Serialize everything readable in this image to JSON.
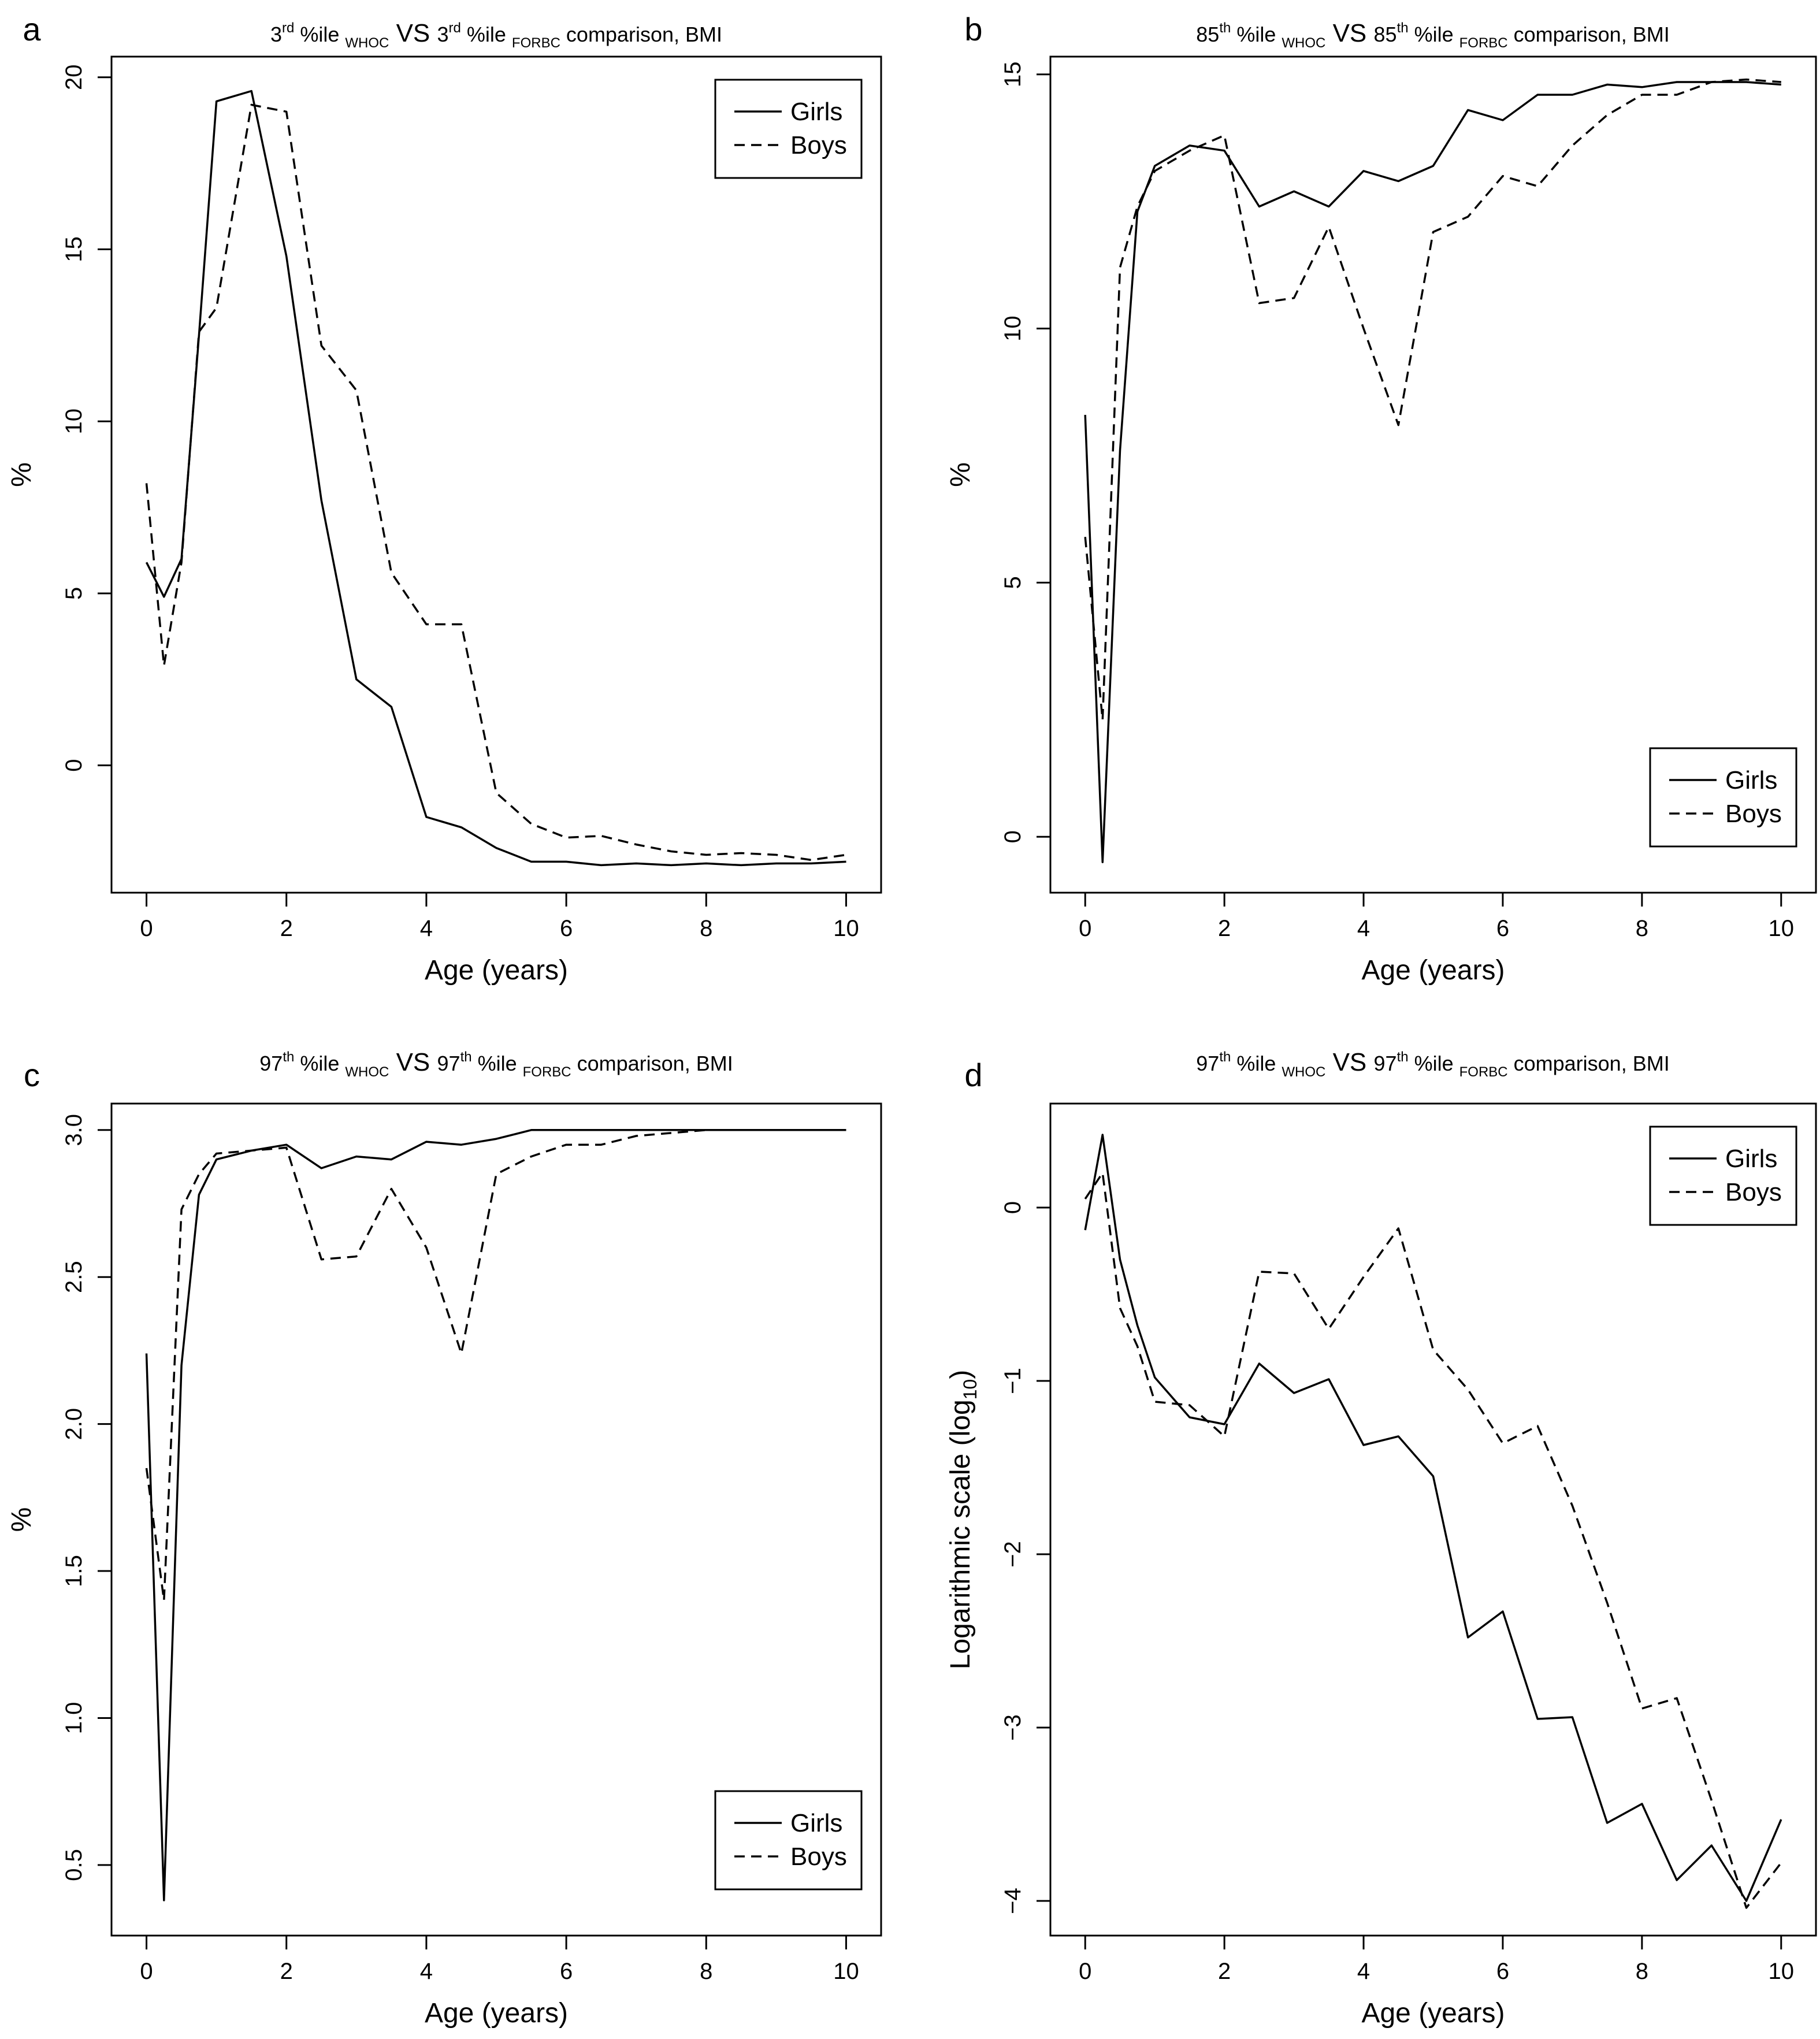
{
  "charts": [
    {
      "type": "line",
      "panel": "a",
      "title": {
        "pre": "3",
        "pre_sup": "rd",
        "mid1": " %ile ",
        "sub1": "WHOC",
        "vs": " VS ",
        "mid2": "3",
        "mid2_sup": "rd",
        "mid3": " %ile ",
        "sub2": "FORBC",
        "post": " comparison, BMI"
      },
      "xlabel": "Age (years)",
      "ylabel": "%",
      "xlim": [
        -0.5,
        10.5
      ],
      "ylim": [
        -3.7,
        20.6
      ],
      "xticks": [
        0,
        2,
        4,
        6,
        8,
        10
      ],
      "xtick_labels": [
        "0",
        "2",
        "4",
        "6",
        "8",
        "10"
      ],
      "yticks": [
        0,
        5,
        10,
        15,
        20
      ],
      "ytick_labels": [
        "0",
        "5",
        "10",
        "15",
        "20"
      ],
      "legend_position": "top-right",
      "x": [
        0,
        0.25,
        0.5,
        0.75,
        1,
        1.5,
        2,
        2.5,
        3,
        3.5,
        4,
        4.5,
        5,
        5.5,
        6,
        6.5,
        7,
        7.5,
        8,
        8.5,
        9,
        9.5,
        10
      ],
      "series": [
        {
          "name": "Girls",
          "style": "solid",
          "values": [
            5.9,
            4.9,
            6.0,
            12.5,
            19.3,
            19.6,
            14.8,
            7.7,
            2.5,
            1.7,
            -1.5,
            -1.8,
            -2.4,
            -2.8,
            -2.8,
            -2.9,
            -2.85,
            -2.9,
            -2.85,
            -2.9,
            -2.85,
            -2.85,
            -2.8
          ]
        },
        {
          "name": "Boys",
          "style": "dashed",
          "values": [
            8.2,
            2.9,
            5.9,
            12.6,
            13.3,
            19.2,
            19.0,
            12.2,
            10.9,
            5.6,
            4.1,
            4.1,
            -0.8,
            -1.7,
            -2.1,
            -2.05,
            -2.3,
            -2.5,
            -2.6,
            -2.55,
            -2.6,
            -2.75,
            -2.6
          ]
        }
      ]
    },
    {
      "type": "line",
      "panel": "b",
      "title": {
        "pre": "85",
        "pre_sup": "th",
        "mid1": " %ile ",
        "sub1": "WHOC",
        "vs": " VS ",
        "mid2": "85",
        "mid2_sup": "th",
        "mid3": " %ile ",
        "sub2": "FORBC",
        "post": " comparison, BMI"
      },
      "xlabel": "Age (years)",
      "ylabel": "%",
      "xlim": [
        -0.5,
        10.5
      ],
      "ylim": [
        -1.1,
        15.35
      ],
      "xticks": [
        0,
        2,
        4,
        6,
        8,
        10
      ],
      "xtick_labels": [
        "0",
        "2",
        "4",
        "6",
        "8",
        "10"
      ],
      "yticks": [
        0,
        5,
        10,
        15
      ],
      "ytick_labels": [
        "0",
        "5",
        "10",
        "15"
      ],
      "legend_position": "bottom-right",
      "x": [
        0,
        0.25,
        0.5,
        0.75,
        1,
        1.5,
        2,
        2.5,
        3,
        3.5,
        4,
        4.5,
        5,
        5.5,
        6,
        6.5,
        7,
        7.5,
        8,
        8.5,
        9,
        9.5,
        10
      ],
      "series": [
        {
          "name": "Girls",
          "style": "solid",
          "values": [
            8.3,
            -0.5,
            7.6,
            12.3,
            13.2,
            13.6,
            13.5,
            12.4,
            12.7,
            12.4,
            13.1,
            12.9,
            13.2,
            14.3,
            14.1,
            14.6,
            14.6,
            14.8,
            14.75,
            14.85,
            14.85,
            14.85,
            14.8
          ]
        },
        {
          "name": "Boys",
          "style": "dashed",
          "values": [
            5.9,
            2.3,
            11.2,
            12.4,
            13.1,
            13.5,
            13.8,
            10.5,
            10.6,
            12.0,
            10.0,
            8.1,
            11.9,
            12.2,
            13.0,
            12.8,
            13.6,
            14.2,
            14.6,
            14.6,
            14.85,
            14.9,
            14.85
          ]
        }
      ]
    },
    {
      "type": "line",
      "panel": "c",
      "title": {
        "pre": "97",
        "pre_sup": "th",
        "mid1": " %ile ",
        "sub1": "WHOC",
        "vs": " VS ",
        "mid2": "97",
        "mid2_sup": "th",
        "mid3": " %ile ",
        "sub2": "FORBC",
        "post": " comparison, BMI"
      },
      "xlabel": "Age (years)",
      "ylabel": "%",
      "xlim": [
        -0.5,
        10.5
      ],
      "ylim": [
        0.26,
        3.09
      ],
      "xticks": [
        0,
        2,
        4,
        6,
        8,
        10
      ],
      "xtick_labels": [
        "0",
        "2",
        "4",
        "6",
        "8",
        "10"
      ],
      "yticks": [
        0.5,
        1.0,
        1.5,
        2.0,
        2.5,
        3.0
      ],
      "ytick_labels": [
        "0.5",
        "1.0",
        "1.5",
        "2.0",
        "2.5",
        "3.0"
      ],
      "legend_position": "bottom-right",
      "x": [
        0,
        0.25,
        0.5,
        0.75,
        1,
        1.5,
        2,
        2.5,
        3,
        3.5,
        4,
        4.5,
        5,
        5.5,
        6,
        6.5,
        7,
        7.5,
        8,
        8.5,
        9,
        9.5,
        10
      ],
      "series": [
        {
          "name": "Girls",
          "style": "solid",
          "values": [
            2.24,
            0.38,
            2.2,
            2.78,
            2.9,
            2.93,
            2.95,
            2.87,
            2.91,
            2.9,
            2.96,
            2.95,
            2.97,
            3.0,
            3.0,
            3.0,
            3.0,
            3.0,
            3.0,
            3.0,
            3.0,
            3.0,
            3.0
          ]
        },
        {
          "name": "Boys",
          "style": "dashed",
          "values": [
            1.85,
            1.4,
            2.73,
            2.85,
            2.92,
            2.93,
            2.94,
            2.56,
            2.57,
            2.8,
            2.6,
            2.24,
            2.85,
            2.91,
            2.95,
            2.95,
            2.98,
            2.99,
            3.0,
            3.0,
            3.0,
            3.0,
            3.0
          ]
        }
      ]
    },
    {
      "type": "line",
      "panel": "d",
      "title": {
        "pre": "97",
        "pre_sup": "th",
        "mid1": " %ile ",
        "sub1": "WHOC",
        "vs": " VS ",
        "mid2": "97",
        "mid2_sup": "th",
        "mid3": " %ile ",
        "sub2": "FORBC",
        "post": " comparison, BMI"
      },
      "xlabel": "Age (years)",
      "ylabel": "Logarithmic scale (log",
      "ylabel_sub": "10",
      "ylabel_post": ")",
      "xlim": [
        -0.5,
        10.5
      ],
      "ylim": [
        -4.2,
        0.6
      ],
      "xticks": [
        0,
        2,
        4,
        6,
        8,
        10
      ],
      "xtick_labels": [
        "0",
        "2",
        "4",
        "6",
        "8",
        "10"
      ],
      "yticks": [
        0,
        -1,
        -2,
        -3,
        -4
      ],
      "ytick_labels": [
        "0",
        "−1",
        "−2",
        "−3",
        "−4"
      ],
      "legend_position": "top-right",
      "x": [
        0,
        0.25,
        0.5,
        0.75,
        1,
        1.5,
        2,
        2.5,
        3,
        3.5,
        4,
        4.5,
        5,
        5.5,
        6,
        6.5,
        7,
        7.5,
        8,
        8.5,
        9,
        9.5,
        10
      ],
      "series": [
        {
          "name": "Girls",
          "style": "solid",
          "values": [
            -0.13,
            0.42,
            -0.3,
            -0.68,
            -0.98,
            -1.21,
            -1.25,
            -0.9,
            -1.07,
            -0.99,
            -1.37,
            -1.32,
            -1.55,
            -2.48,
            -2.33,
            -2.95,
            -2.94,
            -3.55,
            -3.44,
            -3.88,
            -3.68,
            -4.0,
            -3.53
          ]
        },
        {
          "name": "Boys",
          "style": "dashed",
          "values": [
            0.05,
            0.2,
            -0.58,
            -0.8,
            -1.12,
            -1.14,
            -1.32,
            -0.37,
            -0.38,
            -0.7,
            -0.4,
            -0.12,
            -0.82,
            -1.05,
            -1.36,
            -1.26,
            -1.72,
            -2.28,
            -2.89,
            -2.83,
            -3.42,
            -4.04,
            -3.78
          ]
        }
      ]
    }
  ]
}
